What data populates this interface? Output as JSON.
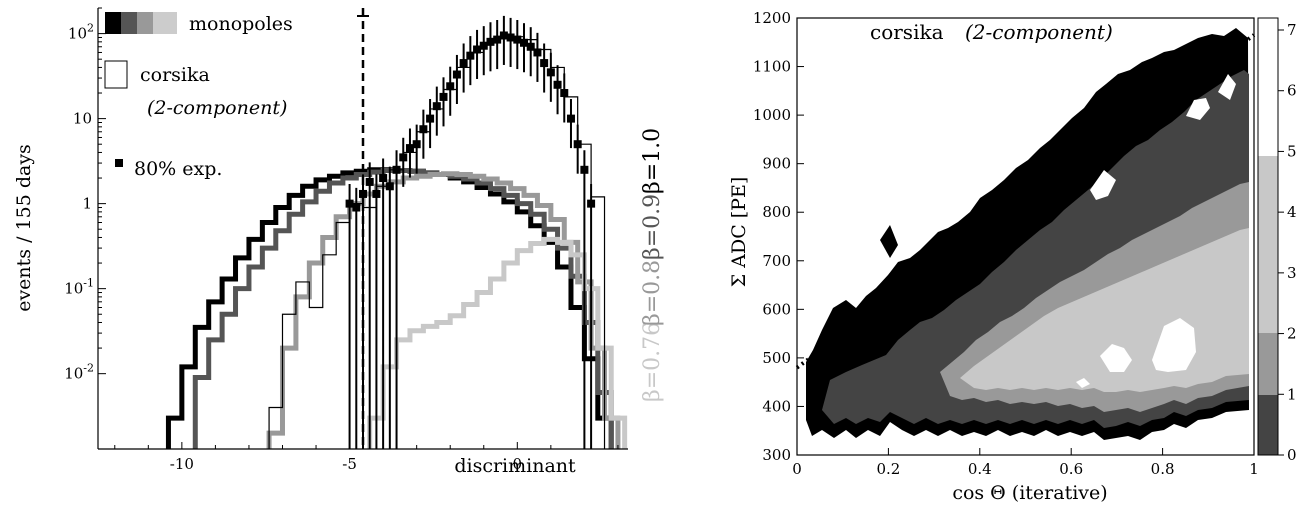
{
  "chart_data": [
    {
      "type": "line",
      "xlabel": "discriminant",
      "ylabel": "events / 155 days",
      "xlim": [
        -12.5,
        3.3
      ],
      "ylim_log": [
        0.0013,
        200
      ],
      "log_y": true,
      "x_ticks": [
        -10,
        -5,
        0
      ],
      "y_ticks": [
        {
          "label": "10",
          "exp": "-2",
          "value": 0.01
        },
        {
          "label": "10",
          "exp": "-1",
          "value": 0.1
        },
        {
          "label": "1",
          "exp": "",
          "value": 1
        },
        {
          "label": "10",
          "exp": "",
          "value": 10
        },
        {
          "label": "10",
          "exp": "2",
          "value": 100
        }
      ],
      "cut_line_x": -4.6,
      "legend": {
        "monopoles": "monopoles",
        "corsika": "corsika",
        "corsika_sub": "(2-component)",
        "exp": "80% exp."
      },
      "beta_labels": [
        {
          "text": "β=0.76",
          "color": "#c8c8c8"
        },
        {
          "text": "β=0.8",
          "color": "#999999"
        },
        {
          "text": "β=0.9",
          "color": "#555555"
        },
        {
          "text": "β=1.0",
          "color": "#000000"
        }
      ],
      "series": [
        {
          "name": "β=1.0",
          "color": "#000000",
          "x": [
            -10.2,
            -9.8,
            -9.4,
            -9.0,
            -8.6,
            -8.2,
            -7.8,
            -7.4,
            -7.0,
            -6.6,
            -6.2,
            -5.8,
            -5.4,
            -5.0,
            -4.6,
            -4.2,
            -3.8,
            -3.4,
            -3.0,
            -2.6,
            -2.2,
            -1.8,
            -1.4,
            -1.0,
            -0.6,
            -0.2,
            0.2,
            0.6,
            1.0,
            1.4,
            1.8,
            2.2,
            2.6
          ],
          "y": [
            0.003,
            0.012,
            0.035,
            0.07,
            0.13,
            0.23,
            0.38,
            0.6,
            0.9,
            1.25,
            1.6,
            1.9,
            2.1,
            2.3,
            2.4,
            2.5,
            2.5,
            2.45,
            2.4,
            2.3,
            2.2,
            2.0,
            1.8,
            1.55,
            1.3,
            1.05,
            0.8,
            0.55,
            0.35,
            0.18,
            0.06,
            0.015,
            0.003
          ]
        },
        {
          "name": "β=0.9",
          "color": "#555555",
          "x": [
            -9.4,
            -9.0,
            -8.6,
            -8.2,
            -7.8,
            -7.4,
            -7.0,
            -6.6,
            -6.2,
            -5.8,
            -5.4,
            -5.0,
            -4.6,
            -4.2,
            -3.8,
            -3.4,
            -3.0,
            -2.6,
            -2.2,
            -1.8,
            -1.4,
            -1.0,
            -0.6,
            -0.2,
            0.2,
            0.6,
            1.0,
            1.4,
            1.8,
            2.2,
            2.6
          ],
          "y": [
            0.009,
            0.025,
            0.05,
            0.1,
            0.18,
            0.3,
            0.48,
            0.75,
            1.05,
            1.4,
            1.75,
            2.0,
            2.2,
            2.35,
            2.45,
            2.45,
            2.4,
            2.3,
            2.2,
            2.1,
            1.95,
            1.75,
            1.5,
            1.25,
            1.0,
            0.75,
            0.5,
            0.3,
            0.14,
            0.04,
            0.006
          ]
        },
        {
          "name": "β=0.8",
          "color": "#999999",
          "x": [
            -7.2,
            -6.8,
            -6.4,
            -6.0,
            -5.6,
            -5.2,
            -4.8,
            -4.4,
            -4.0,
            -3.6,
            -3.2,
            -2.8,
            -2.4,
            -2.0,
            -1.6,
            -1.2,
            -0.8,
            -0.4,
            0.0,
            0.4,
            0.8,
            1.2,
            1.6,
            2.0,
            2.4,
            2.8
          ],
          "y": [
            0.002,
            0.02,
            0.08,
            0.2,
            0.4,
            0.7,
            1.0,
            1.3,
            1.6,
            1.8,
            2.0,
            2.1,
            2.2,
            2.25,
            2.2,
            2.1,
            1.95,
            1.75,
            1.5,
            1.25,
            0.95,
            0.65,
            0.35,
            0.12,
            0.02,
            0.003
          ]
        },
        {
          "name": "β=0.76",
          "color": "#c8c8c8",
          "x": [
            -4.2,
            -3.8,
            -3.4,
            -3.0,
            -2.6,
            -2.2,
            -1.8,
            -1.4,
            -1.0,
            -0.6,
            -0.2,
            0.2,
            0.6,
            1.0,
            1.4,
            1.8,
            2.2,
            2.6,
            3.0
          ],
          "y": [
            0.003,
            0.012,
            0.025,
            0.032,
            0.036,
            0.04,
            0.048,
            0.065,
            0.09,
            0.13,
            0.2,
            0.28,
            0.34,
            0.38,
            0.35,
            0.25,
            0.1,
            0.02,
            0.003
          ]
        },
        {
          "name": "corsika",
          "color": "#000000",
          "x": [
            -7.2,
            -6.8,
            -6.4,
            -6.0,
            -5.6,
            -5.2,
            -4.8,
            -4.4,
            -4.0,
            -3.6,
            -3.2,
            -2.8,
            -2.4,
            -2.0,
            -1.6,
            -1.2,
            -0.8,
            -0.4,
            0.0,
            0.4,
            0.8,
            1.2,
            1.6,
            2.0,
            2.4
          ],
          "y": [
            0.004,
            0.05,
            0.12,
            0.06,
            0.25,
            0.6,
            1.0,
            0.9,
            1.6,
            2.5,
            4.0,
            7.0,
            13,
            22,
            40,
            60,
            78,
            88,
            92,
            85,
            65,
            40,
            18,
            5,
            1.2
          ]
        },
        {
          "name": "80% exp.",
          "color": "#000000",
          "x": [
            -5.0,
            -4.8,
            -4.6,
            -4.4,
            -4.2,
            -4.0,
            -3.8,
            -3.6,
            -3.4,
            -3.2,
            -3.0,
            -2.8,
            -2.6,
            -2.4,
            -2.2,
            -2.0,
            -1.8,
            -1.6,
            -1.4,
            -1.2,
            -1.0,
            -0.8,
            -0.6,
            -0.4,
            -0.2,
            0.0,
            0.2,
            0.4,
            0.6,
            0.8,
            1.0,
            1.2,
            1.4,
            1.6,
            1.8,
            2.0,
            2.2
          ],
          "y": [
            1.0,
            0.9,
            1.3,
            1.8,
            1.3,
            2.0,
            1.6,
            2.5,
            3.5,
            4.5,
            5.0,
            7.5,
            10,
            14,
            18,
            24,
            33,
            45,
            55,
            65,
            72,
            80,
            85,
            95,
            90,
            85,
            78,
            70,
            60,
            45,
            35,
            25,
            20,
            10,
            5,
            2.5,
            1.0
          ]
        }
      ]
    },
    {
      "type": "heatmap",
      "title": "corsika",
      "title_italic": "(2-component)",
      "xlabel": "cos Θ (iterative)",
      "ylabel": "Σ ADC [PE]",
      "xlim": [
        0,
        1
      ],
      "ylim": [
        300,
        1200
      ],
      "x_ticks": [
        0,
        0.2,
        0.4,
        0.6,
        0.8,
        1
      ],
      "y_ticks": [
        300,
        400,
        500,
        600,
        700,
        800,
        900,
        1000,
        1100,
        1200
      ],
      "colorbar_ticks": [
        0,
        1,
        2,
        3,
        4,
        5,
        6,
        7
      ],
      "levels": [
        {
          "level": 1,
          "color": "#000000"
        },
        {
          "level": 2,
          "color": "#444444"
        },
        {
          "level": 3,
          "color": "#999999"
        },
        {
          "level": 4,
          "color": "#c8c8c8"
        },
        {
          "level": 5,
          "color": "#ffffff"
        }
      ],
      "cut_line": {
        "x": [
          0,
          1
        ],
        "y": [
          480,
          1165
        ]
      }
    }
  ]
}
